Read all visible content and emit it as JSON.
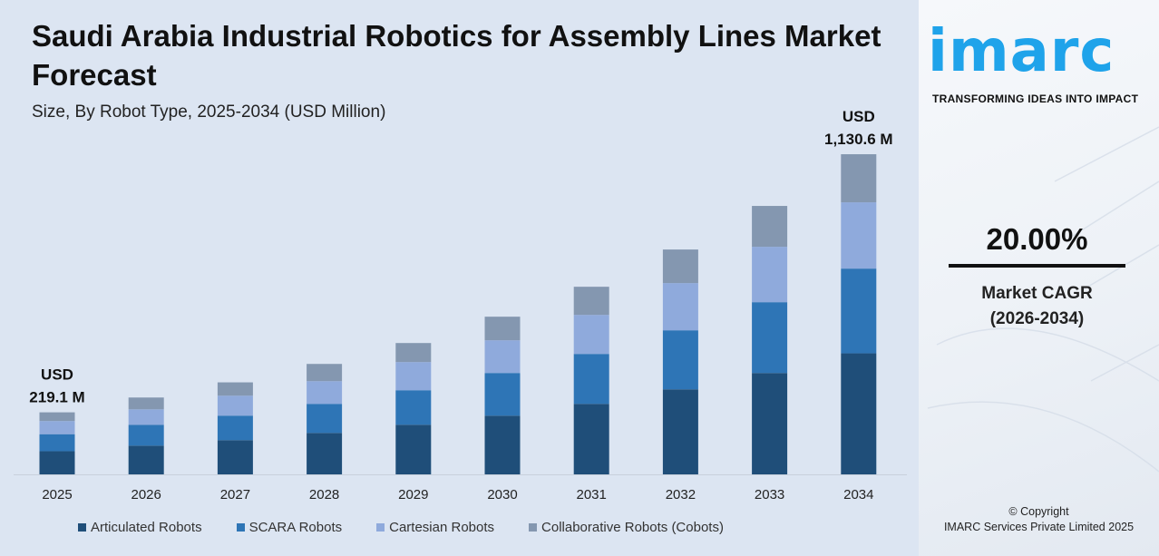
{
  "title": "Saudi Arabia Industrial Robotics for Assembly Lines Market Forecast",
  "subtitle": "Size, By Robot Type, 2025-2034 (USD Million)",
  "brand": {
    "logo_text": "imarc",
    "tagline": "TRANSFORMING IDEAS INTO IMPACT",
    "color": "#1fa3ea"
  },
  "cagr": {
    "value": "20.00%",
    "label": "Market CAGR",
    "period": "(2026-2034)"
  },
  "copyright": {
    "line1": "© Copyright",
    "line2": "IMARC Services Private Limited 2025"
  },
  "chart_data": {
    "type": "bar",
    "stacked": true,
    "categories": [
      "2025",
      "2026",
      "2027",
      "2028",
      "2029",
      "2030",
      "2031",
      "2032",
      "2033",
      "2034"
    ],
    "series": [
      {
        "name": "Articulated Robots",
        "color": "#1f4e79",
        "values": [
          81.8,
          101.5,
          120.8,
          146.4,
          175.3,
          207.3,
          249.0,
          300.3,
          358.0,
          427.4
        ]
      },
      {
        "name": "SCARA Robots",
        "color": "#2e75b6",
        "values": [
          60.1,
          73.7,
          86.6,
          102.6,
          121.8,
          150.7,
          176.3,
          208.4,
          250.0,
          299.2
        ]
      },
      {
        "name": "Cartesian Robots",
        "color": "#8faadc",
        "values": [
          46.5,
          54.5,
          70.5,
          80.1,
          99.4,
          115.4,
          137.8,
          166.7,
          195.6,
          234.0
        ]
      },
      {
        "name": "Collaborative Robots (Cobots)",
        "color": "#8497b0",
        "values": [
          30.7,
          41.7,
          47.0,
          60.9,
          67.3,
          83.4,
          99.4,
          118.6,
          144.3,
          169.9
        ]
      }
    ],
    "annotations": [
      {
        "category": "2025",
        "line1": "USD",
        "line2": "219.1 M"
      },
      {
        "category": "2034",
        "line1": "USD",
        "line2": "1,130.6 M"
      }
    ],
    "ylim": [
      0,
      1130.6
    ],
    "grid": false,
    "legend": "bottom"
  }
}
